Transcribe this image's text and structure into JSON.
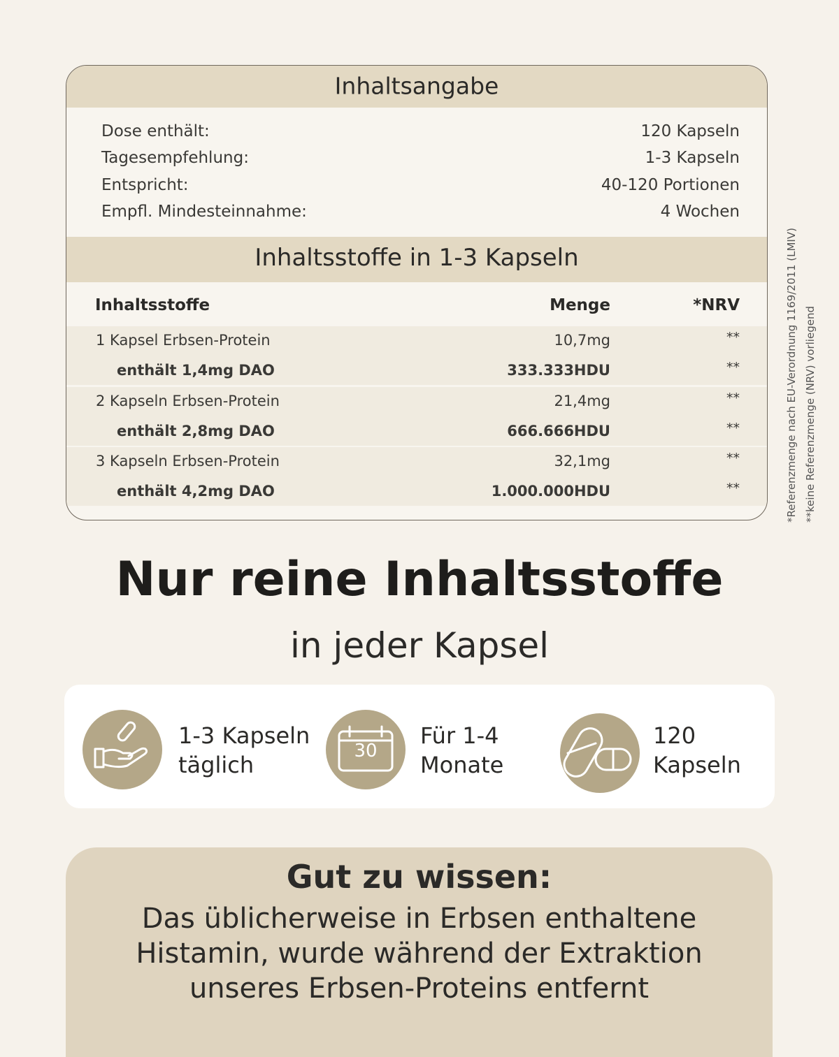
{
  "contents": {
    "title": "Inhaltsangabe",
    "rows": [
      [
        "Dose enthält:",
        "120 Kapseln"
      ],
      [
        "Tagesempfehlung:",
        "1-3 Kapseln"
      ],
      [
        "Entspricht:",
        "40-120 Portionen"
      ],
      [
        "Empfl. Mindesteinnahme:",
        "4 Wochen"
      ]
    ]
  },
  "ingredients": {
    "title": "Inhaltsstoffe in 1-3 Kapseln",
    "header": [
      "Inhaltsstoffe",
      "Menge",
      "*NRV"
    ],
    "rows": [
      [
        "1 Kapsel Erbsen-Protein",
        "10,7mg",
        "**"
      ],
      [
        "enthält 1,4mg DAO",
        "333.333HDU",
        "**"
      ],
      [
        "2 Kapseln Erbsen-Protein",
        "21,4mg",
        "**"
      ],
      [
        "enthält 2,8mg DAO",
        "666.666HDU",
        "**"
      ],
      [
        "3 Kapseln Erbsen-Protein",
        "32,1mg",
        "**"
      ],
      [
        "enthält 4,2mg DAO",
        "1.000.000HDU",
        "**"
      ]
    ]
  },
  "side_notes": [
    "*Referenzmenge nach EU-Verordnung 1169/2011 (LMIV)",
    "**keine Referenzmenge (NRV) vorliegend"
  ],
  "headline": "Nur reine Inhaltsstoffe",
  "subheadline": "in jeder Kapsel",
  "features": [
    {
      "lines": [
        "1-3 Kapseln",
        "täglich"
      ]
    },
    {
      "icon_text": "30",
      "lines": [
        "Für 1-4",
        "Monate"
      ]
    },
    {
      "lines": [
        "120",
        "Kapseln"
      ]
    }
  ],
  "note": {
    "title": "Gut zu wissen:",
    "lines": [
      "Das üblicherweise in Erbsen enthaltene",
      "Histamin, wurde während der Extraktion",
      "unseres Erbsen-Proteins entfernt"
    ]
  }
}
